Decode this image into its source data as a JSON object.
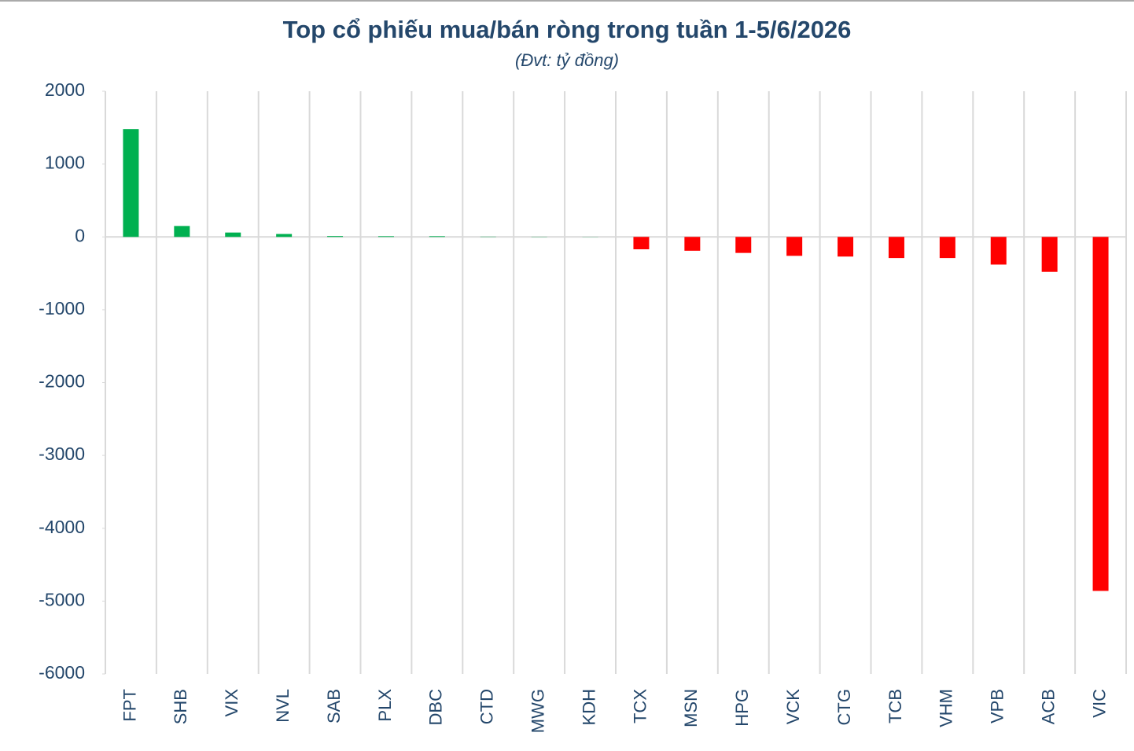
{
  "chart_data": {
    "type": "bar",
    "title": "Top cổ phiếu mua/bán ròng trong tuần 1-5/6/2026",
    "subtitle": "(Đvt: tỷ đồng)",
    "categories": [
      "FPT",
      "SHB",
      "VIX",
      "NVL",
      "SAB",
      "PLX",
      "DBC",
      "CTD",
      "MWG",
      "KDH",
      "TCX",
      "MSN",
      "HPG",
      "VCK",
      "CTG",
      "TCB",
      "VHM",
      "VPB",
      "ACB",
      "VIC"
    ],
    "values": [
      1480,
      150,
      60,
      40,
      12,
      10,
      10,
      4,
      3,
      2,
      -170,
      -190,
      -220,
      -260,
      -270,
      -290,
      -290,
      -380,
      -480,
      -4860
    ],
    "positive_color": "#00b050",
    "negative_color": "#ff0000",
    "ylim": [
      -6000,
      2000
    ],
    "yticks": [
      -6000,
      -5000,
      -4000,
      -3000,
      -2000,
      -1000,
      0,
      1000,
      2000
    ],
    "grid": true
  }
}
